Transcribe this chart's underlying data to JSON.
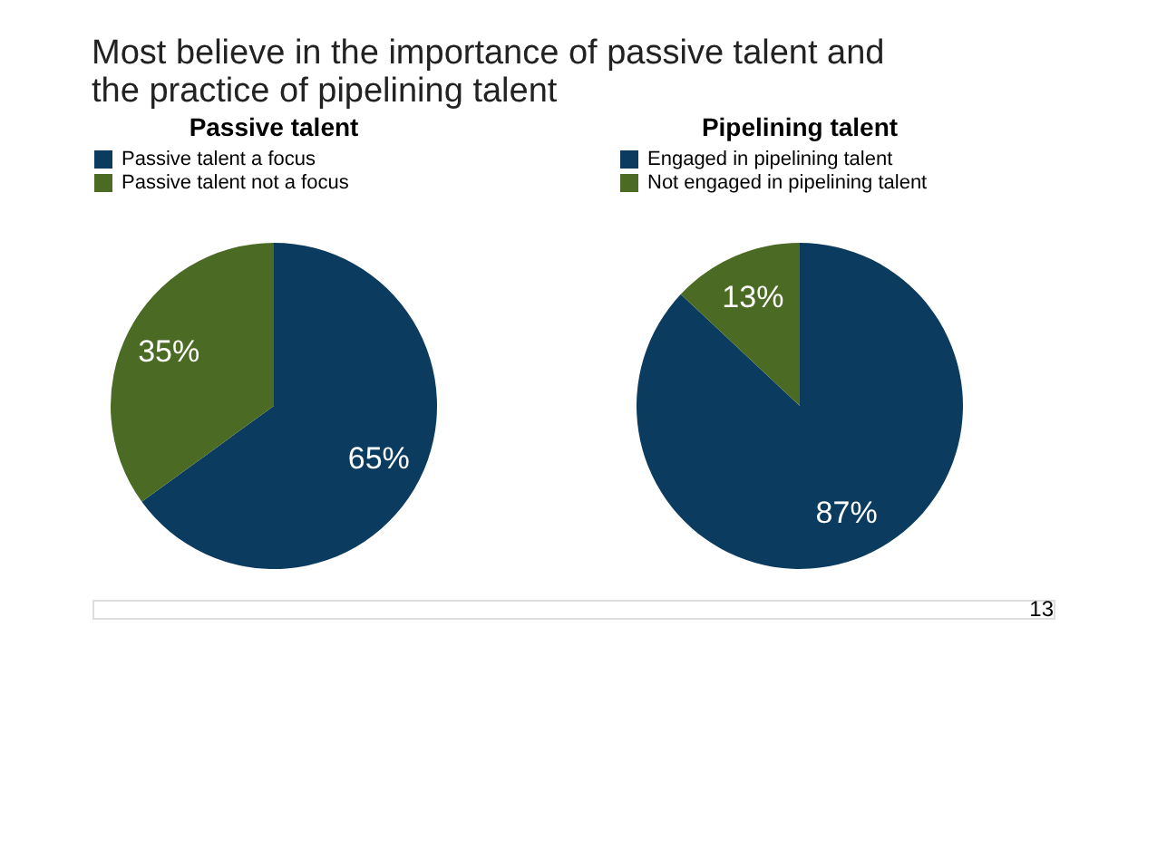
{
  "chart_data": [
    {
      "type": "pie",
      "title": "Passive talent",
      "categories": [
        "Passive talent a focus",
        "Passive talent not a focus"
      ],
      "values": [
        65,
        35
      ],
      "colors": [
        "#0b3b5e",
        "#4b6a24"
      ],
      "value_labels": [
        "65%",
        "35%"
      ],
      "legend": "top",
      "annotations": [
        "Most believe in the importance of passive talent and the practice of pipelining talent"
      ]
    },
    {
      "type": "pie",
      "title": "Pipelining talent",
      "categories": [
        "Engaged in pipelining talent",
        "Not engaged in pipelining talent"
      ],
      "values": [
        87,
        13
      ],
      "colors": [
        "#0b3b5e",
        "#4b6a24"
      ],
      "value_labels": [
        "87%",
        "13%"
      ],
      "legend": "top",
      "annotations": [
        "13"
      ]
    }
  ]
}
